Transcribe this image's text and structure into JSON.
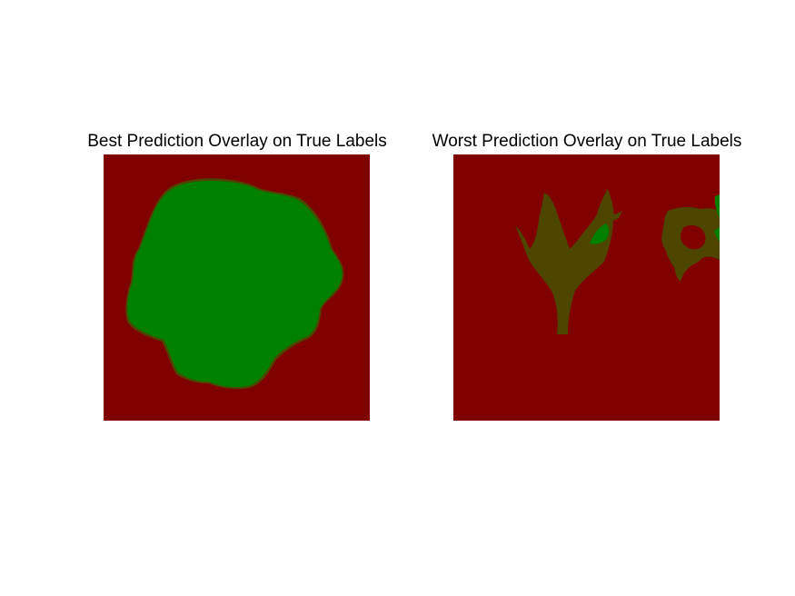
{
  "figure": {
    "panels": [
      {
        "title": "Best Prediction Overlay on True Labels"
      },
      {
        "title": "Worst Prediction Overlay on True Labels"
      }
    ]
  },
  "colors": {
    "background_class": "#800000",
    "true_positive": "#008000",
    "overlap": "#4d4500",
    "green_light": "#0e8a10"
  }
}
